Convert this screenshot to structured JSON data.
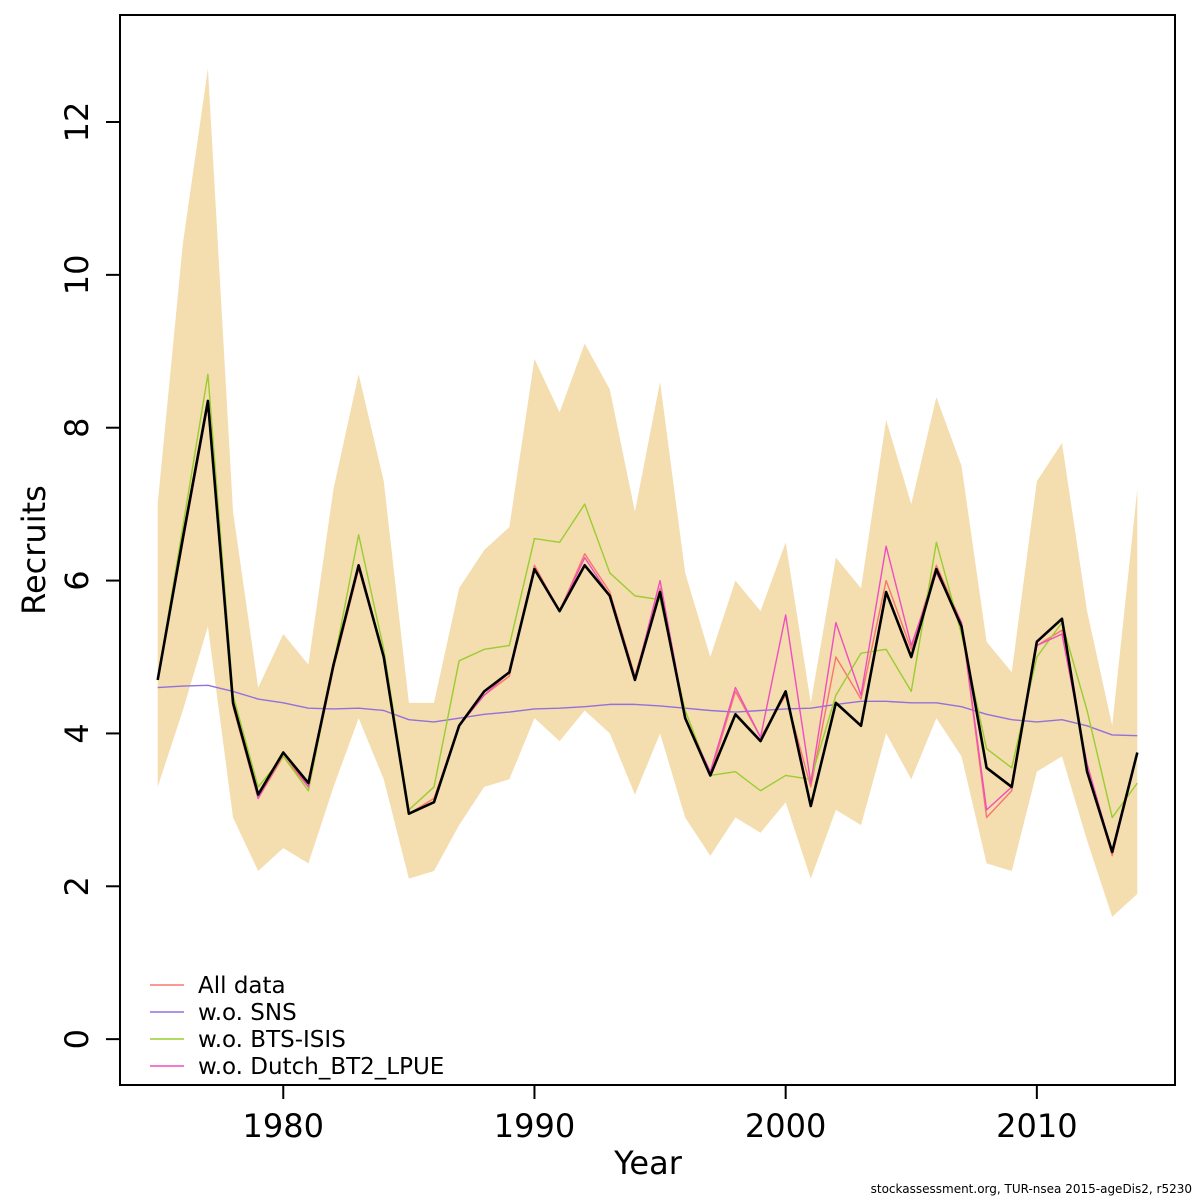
{
  "figure": {
    "footer": "stockassessment.org, TUR-nsea  2015-ageDis2, r5230"
  },
  "chart_data": {
    "type": "line",
    "title": "",
    "xlabel": "Year",
    "ylabel": "Recruits",
    "xlim": [
      1973.5,
      2015.5
    ],
    "ylim": [
      -0.6,
      13.4
    ],
    "x_ticks": [
      1980,
      1990,
      2000,
      2010
    ],
    "y_ticks": [
      0,
      2,
      4,
      6,
      8,
      10,
      12
    ],
    "grid": "off",
    "legend_position": "bottom-left",
    "years": [
      1975,
      1976,
      1977,
      1978,
      1979,
      1980,
      1981,
      1982,
      1983,
      1984,
      1985,
      1986,
      1987,
      1988,
      1989,
      1990,
      1991,
      1992,
      1993,
      1994,
      1995,
      1996,
      1997,
      1998,
      1999,
      2000,
      2001,
      2002,
      2003,
      2004,
      2005,
      2006,
      2007,
      2008,
      2009,
      2010,
      2011,
      2012,
      2013,
      2014
    ],
    "band": {
      "name": "confidence-band",
      "color": "#f4ddae",
      "lower": [
        3.3,
        4.3,
        5.4,
        2.9,
        2.2,
        2.5,
        2.3,
        3.3,
        4.2,
        3.4,
        2.1,
        2.2,
        2.8,
        3.3,
        3.4,
        4.2,
        3.9,
        4.3,
        4.0,
        3.2,
        4.0,
        2.9,
        2.4,
        2.9,
        2.7,
        3.1,
        2.1,
        3.0,
        2.8,
        4.0,
        3.4,
        4.2,
        3.7,
        2.3,
        2.2,
        3.5,
        3.7,
        2.6,
        1.6,
        1.9
      ],
      "upper": [
        7.0,
        10.4,
        12.7,
        6.9,
        4.6,
        5.3,
        4.9,
        7.2,
        8.7,
        7.3,
        4.4,
        4.4,
        5.9,
        6.4,
        6.7,
        8.9,
        8.2,
        9.1,
        8.5,
        6.9,
        8.6,
        6.1,
        5.0,
        6.0,
        5.6,
        6.5,
        4.4,
        6.3,
        5.9,
        8.1,
        7.0,
        8.4,
        7.5,
        5.2,
        4.8,
        7.3,
        7.8,
        5.6,
        4.1,
        7.2
      ]
    },
    "base_series": {
      "name": "base",
      "color": "#000000",
      "width": 2.6,
      "values": [
        4.7,
        6.55,
        8.35,
        4.4,
        3.2,
        3.75,
        3.35,
        4.9,
        6.2,
        5.0,
        2.95,
        3.1,
        4.1,
        4.55,
        4.8,
        6.15,
        5.6,
        6.2,
        5.8,
        4.7,
        5.85,
        4.2,
        3.45,
        4.25,
        3.9,
        4.55,
        3.05,
        4.4,
        4.1,
        5.85,
        5.0,
        6.15,
        5.4,
        3.55,
        3.3,
        5.2,
        5.5,
        3.5,
        2.45,
        3.75
      ]
    },
    "series": [
      {
        "name": "All data",
        "color": "#f8766d",
        "values": [
          4.7,
          6.5,
          8.3,
          4.35,
          3.15,
          3.7,
          3.3,
          4.85,
          6.15,
          5.0,
          2.95,
          3.15,
          4.1,
          4.5,
          4.75,
          6.2,
          5.6,
          6.35,
          5.85,
          4.75,
          5.9,
          4.2,
          3.45,
          4.55,
          3.95,
          4.5,
          3.3,
          5.0,
          4.45,
          6.0,
          5.1,
          6.2,
          5.45,
          2.9,
          3.25,
          5.15,
          5.35,
          3.55,
          2.4,
          3.75
        ]
      },
      {
        "name": "w.o. SNS",
        "color": "#9370db",
        "values": [
          4.6,
          4.62,
          4.63,
          4.55,
          4.45,
          4.4,
          4.33,
          4.32,
          4.33,
          4.3,
          4.18,
          4.15,
          4.2,
          4.25,
          4.28,
          4.32,
          4.33,
          4.35,
          4.38,
          4.38,
          4.36,
          4.33,
          4.3,
          4.28,
          4.3,
          4.32,
          4.33,
          4.38,
          4.42,
          4.42,
          4.4,
          4.4,
          4.35,
          4.25,
          4.18,
          4.15,
          4.18,
          4.1,
          3.98,
          3.97
        ]
      },
      {
        "name": "w.o. BTS-ISIS",
        "color": "#9acd32",
        "values": [
          4.7,
          6.7,
          8.7,
          4.5,
          3.3,
          3.7,
          3.25,
          4.9,
          6.6,
          5.1,
          3.0,
          3.3,
          4.95,
          5.1,
          5.15,
          6.55,
          6.5,
          7.0,
          6.1,
          5.8,
          5.75,
          4.3,
          3.45,
          3.5,
          3.25,
          3.45,
          3.4,
          4.5,
          5.05,
          5.1,
          4.55,
          6.5,
          5.3,
          3.8,
          3.55,
          5.0,
          5.45,
          4.3,
          2.9,
          3.35
        ]
      },
      {
        "name": "w.o. Dutch_BT2_LPUE",
        "color": "#ee4fc0",
        "values": [
          4.7,
          6.5,
          8.3,
          4.4,
          3.15,
          3.75,
          3.3,
          4.9,
          6.2,
          5.0,
          2.95,
          3.1,
          4.1,
          4.5,
          4.8,
          6.15,
          5.6,
          6.3,
          5.8,
          4.7,
          6.0,
          4.2,
          3.5,
          4.6,
          3.95,
          5.55,
          3.35,
          5.45,
          4.5,
          6.45,
          5.15,
          6.1,
          5.45,
          3.0,
          3.3,
          5.15,
          5.3,
          3.6,
          2.45,
          3.75
        ]
      }
    ]
  }
}
